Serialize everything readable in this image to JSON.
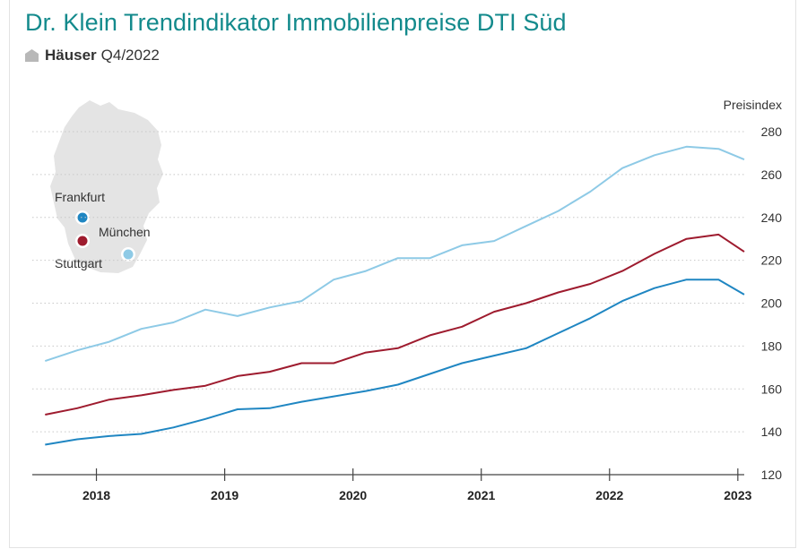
{
  "header": {
    "title": "Dr. Klein Trendindikator Immobilienpreise DTI Süd",
    "subtitle_bold": "Häuser",
    "subtitle_rest": "Q4/2022"
  },
  "map": {
    "cities": [
      {
        "name": "Frankfurt",
        "color": "#1f86c2"
      },
      {
        "name": "Stuttgart",
        "color": "#9e1b2e"
      },
      {
        "name": "München",
        "color": "#8ecae6"
      }
    ]
  },
  "chart_data": {
    "type": "line",
    "ylabel": "Preisindex",
    "ylim": [
      120,
      285
    ],
    "yticks": [
      120,
      140,
      160,
      180,
      200,
      220,
      240,
      260,
      280
    ],
    "xlim": [
      2017.5,
      2023.05
    ],
    "xticks": [
      2018,
      2019,
      2020,
      2021,
      2022,
      2023
    ],
    "grid": true,
    "x": [
      2017.6,
      2017.85,
      2018.1,
      2018.35,
      2018.6,
      2018.85,
      2019.1,
      2019.35,
      2019.6,
      2019.85,
      2020.1,
      2020.35,
      2020.6,
      2020.85,
      2021.1,
      2021.35,
      2021.6,
      2021.85,
      2022.1,
      2022.35,
      2022.6,
      2022.85,
      2023.05
    ],
    "series": [
      {
        "name": "München",
        "color": "#8ecae6",
        "values": [
          173,
          178,
          182,
          188,
          191,
          197,
          194,
          198,
          201,
          211,
          215,
          221,
          221,
          227,
          229,
          236,
          243,
          252,
          263,
          269,
          273,
          272,
          267
        ]
      },
      {
        "name": "Stuttgart",
        "color": "#9e1b2e",
        "values": [
          148,
          151,
          155,
          157,
          159.5,
          161.5,
          166,
          168,
          172,
          172,
          177,
          179,
          185,
          189,
          196,
          200,
          205,
          209,
          215,
          223,
          230,
          232,
          224
        ]
      },
      {
        "name": "Frankfurt",
        "color": "#1f86c2",
        "values": [
          134,
          136.5,
          138,
          139,
          142,
          146,
          150.5,
          151,
          154,
          156.5,
          159,
          162,
          167,
          172,
          175.5,
          179,
          186,
          193,
          201,
          207,
          211,
          211,
          204
        ]
      }
    ]
  }
}
